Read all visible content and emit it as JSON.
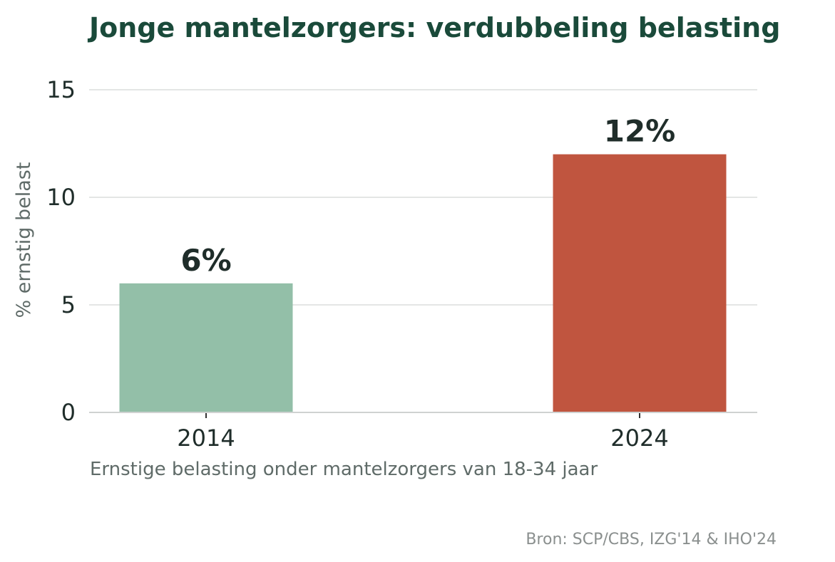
{
  "chart_data": {
    "type": "bar",
    "title": "Jonge mantelzorgers: verdubbeling belasting",
    "subtitle": "Ernstige belasting onder mantelzorgers van 18-34 jaar",
    "source": "Bron: SCP/CBS, IZG'14 & IHO'24",
    "xlabel": "",
    "ylabel": "% ernstig belast",
    "categories": [
      "2014",
      "2024"
    ],
    "values": [
      6,
      12
    ],
    "data_labels": [
      "6%",
      "12%"
    ],
    "bar_colors": [
      "#93bfa8",
      "#c0553f"
    ],
    "ylim": [
      0,
      16
    ],
    "yticks": [
      0,
      5,
      10,
      15
    ],
    "grid": true,
    "title_color": "#1a4a3a"
  }
}
